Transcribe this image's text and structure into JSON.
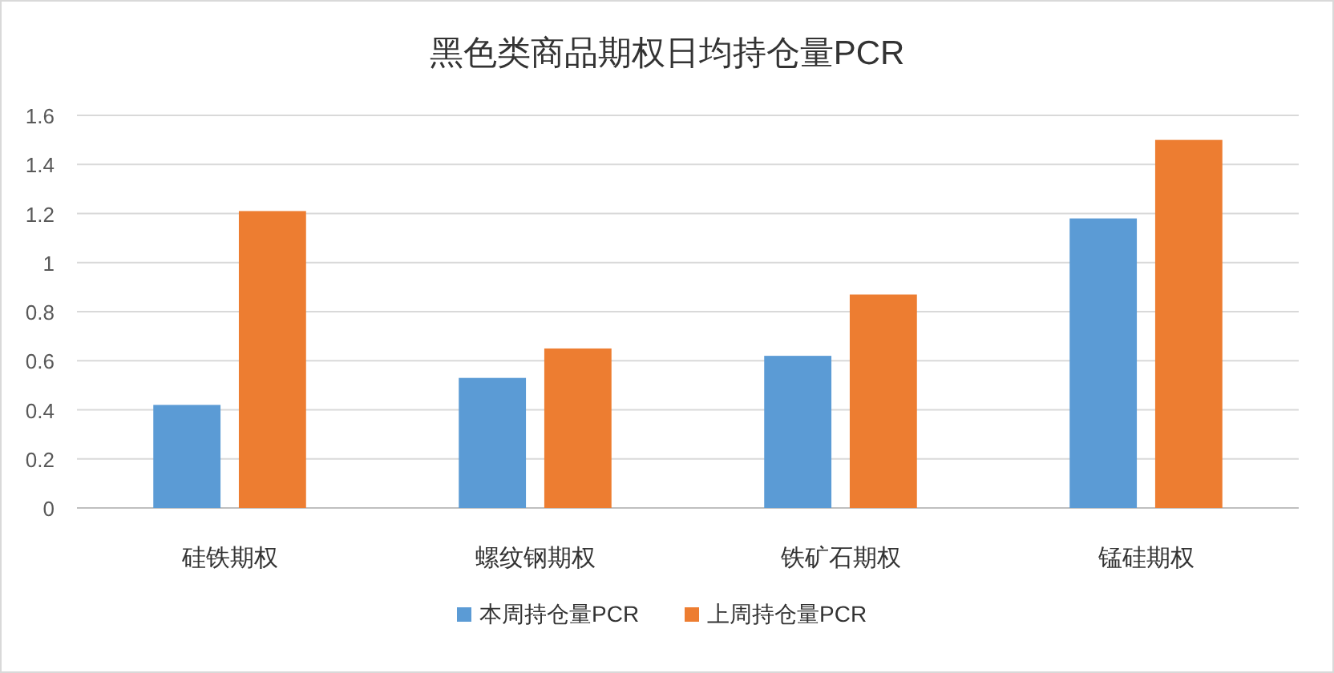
{
  "chart_data": {
    "type": "bar",
    "title": "黑色类商品期权日均持仓量PCR",
    "categories": [
      "硅铁期权",
      "螺纹钢期权",
      "铁矿石期权",
      "锰硅期权"
    ],
    "series": [
      {
        "name": "本周持仓量PCR",
        "color": "#5b9bd5",
        "values": [
          0.42,
          0.53,
          0.62,
          1.18
        ]
      },
      {
        "name": "上周持仓量PCR",
        "color": "#ed7d31",
        "values": [
          1.21,
          0.65,
          0.87,
          1.5
        ]
      }
    ],
    "ylim": [
      0,
      1.6
    ],
    "yticks": [
      0,
      0.2,
      0.4,
      0.6,
      0.8,
      1,
      1.2,
      1.4,
      1.6
    ],
    "grid": "y",
    "legend": "bottom"
  }
}
